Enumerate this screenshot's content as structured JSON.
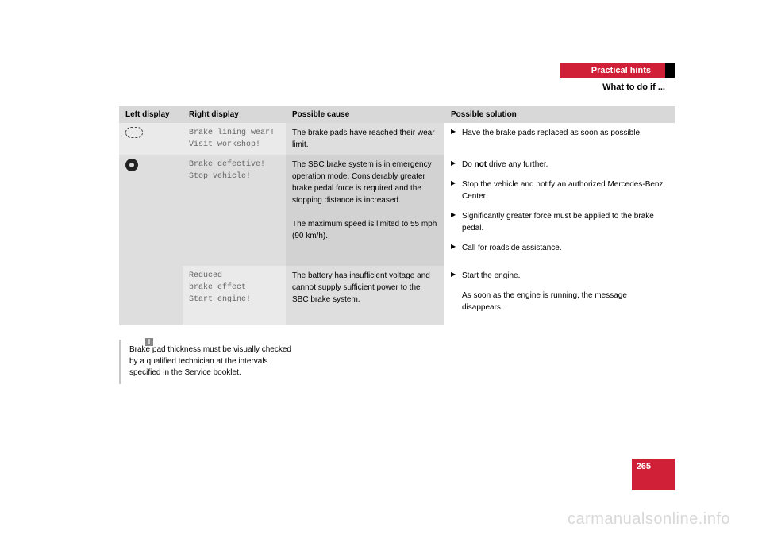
{
  "header": {
    "section": "Practical hints",
    "subtitle": "What to do if ..."
  },
  "table": {
    "headers": {
      "left": "Left display",
      "right": "Right display",
      "cause": "Possible cause",
      "solution": "Possible solution"
    },
    "rows": [
      {
        "icon": "brake-lining-icon",
        "right_lines": [
          "Brake lining wear!",
          "Visit workshop!"
        ],
        "cause": "The brake pads have reached their wear limit.",
        "solutions": [
          {
            "text": "Have the brake pads replaced as soon as possible.",
            "marker": true
          }
        ]
      },
      {
        "icon": "brake-warn-icon",
        "right_lines": [
          " Brake defective!",
          "Stop vehicle!"
        ],
        "cause": "The SBC brake system is in emergency operation mode. Considerably greater brake pedal force is required and the stopping distance is increased.\n\nThe maximum speed is limited to 55 mph (90 km/h).",
        "solutions": [
          {
            "text_html": "Do <b>not</b> drive any further.",
            "marker": true
          },
          {
            "text": "Stop the vehicle and notify an authorized Mercedes-Benz Center.",
            "marker": true
          },
          {
            "text": "Significantly greater force must be applied to the brake pedal.",
            "marker": true
          },
          {
            "text": "Call for roadside assistance.",
            "marker": true
          }
        ]
      },
      {
        "icon": "",
        "right_lines": [
          "Reduced",
          "brake effect",
          "Start engine!"
        ],
        "cause": "The battery has insufficient voltage and cannot supply sufficient power to the SBC brake system.",
        "solutions": [
          {
            "text": "Start the engine.",
            "marker": true
          },
          {
            "text": "As soon as the engine is running, the message disappears.",
            "marker": false
          }
        ]
      }
    ]
  },
  "note": "Brake pad thickness must be visually checked by a qualified technician at the intervals specified in the Service booklet.",
  "page_number": "265",
  "watermark": "carmanualsonline.info"
}
